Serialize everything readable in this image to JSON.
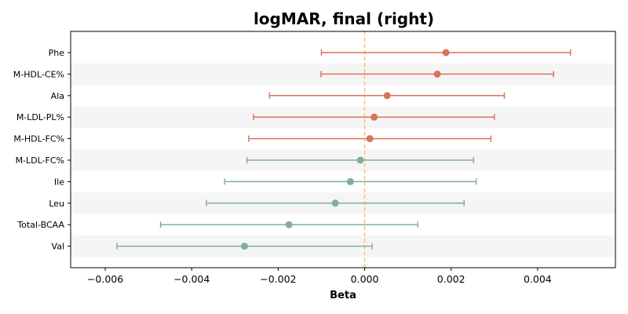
{
  "chart_data": {
    "type": "forest",
    "title": "logMAR, final (right)",
    "xlabel": "Beta",
    "ylabel": "",
    "xlim": [
      -0.0068,
      0.0058
    ],
    "xticks": [
      -0.006,
      -0.004,
      -0.002,
      0.0,
      0.002,
      0.004
    ],
    "xtick_labels": [
      "−0.006",
      "−0.004",
      "−0.002",
      "0.000",
      "0.002",
      "0.004"
    ],
    "reference_line": 0.0,
    "row_shading": "alternating",
    "colors": {
      "positive": "#d9735a",
      "negative": "#7fb097",
      "reference": "#f5c27a",
      "band": "#f5f5f5"
    },
    "points": [
      {
        "label": "Phe",
        "beta": 0.00188,
        "ci_low": -0.001,
        "ci_high": 0.00476
      },
      {
        "label": "M-HDL-CE%",
        "beta": 0.00168,
        "ci_low": -0.00101,
        "ci_high": 0.00437
      },
      {
        "label": "Ala",
        "beta": 0.00052,
        "ci_low": -0.0022,
        "ci_high": 0.00323
      },
      {
        "label": "M-LDL-PL%",
        "beta": 0.00022,
        "ci_low": -0.00257,
        "ci_high": 0.003
      },
      {
        "label": "M-HDL-FC%",
        "beta": 0.00012,
        "ci_low": -0.00268,
        "ci_high": 0.00292
      },
      {
        "label": "M-LDL-FC%",
        "beta": -0.0001,
        "ci_low": -0.00272,
        "ci_high": 0.00252
      },
      {
        "label": "Ile",
        "beta": -0.00033,
        "ci_low": -0.00324,
        "ci_high": 0.00258
      },
      {
        "label": "Leu",
        "beta": -0.00068,
        "ci_low": -0.00366,
        "ci_high": 0.0023
      },
      {
        "label": "Total-BCAA",
        "beta": -0.00175,
        "ci_low": -0.00472,
        "ci_high": 0.00123
      },
      {
        "label": "Val",
        "beta": -0.00278,
        "ci_low": -0.00573,
        "ci_high": 0.00017
      }
    ]
  }
}
